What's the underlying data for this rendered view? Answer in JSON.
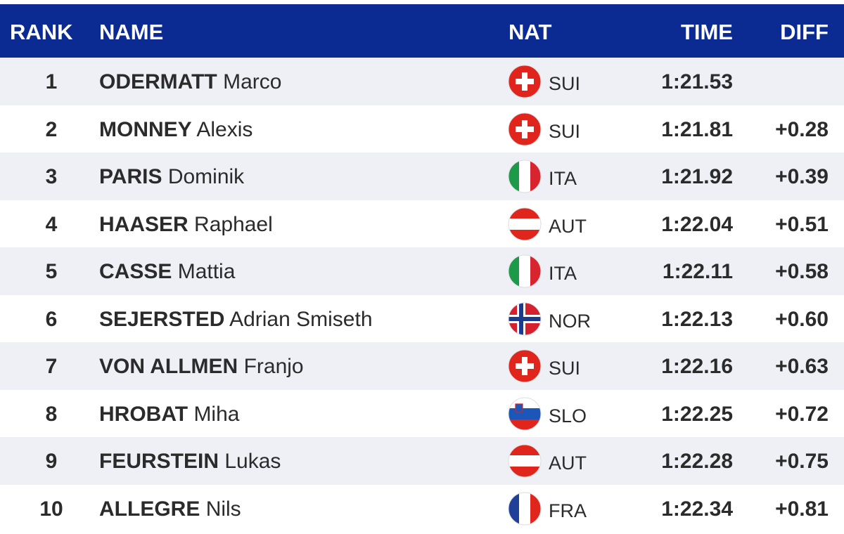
{
  "header": {
    "rank": "RANK",
    "name": "NAME",
    "nat": "NAT",
    "time": "TIME",
    "diff": "DIFF"
  },
  "rows": [
    {
      "rank": 1,
      "surname": "ODERMATT",
      "first_name": "Marco",
      "nat": "SUI",
      "time": "1:21.53"
    },
    {
      "rank": 2,
      "surname": "MONNEY",
      "first_name": "Alexis",
      "nat": "SUI",
      "time": "1:21.81",
      "diff": "+0.28"
    },
    {
      "rank": 3,
      "surname": "PARIS",
      "first_name": "Dominik",
      "nat": "ITA",
      "time": "1:21.92",
      "diff": "+0.39"
    },
    {
      "rank": 4,
      "surname": "HAASER",
      "first_name": "Raphael",
      "nat": "AUT",
      "time": "1:22.04",
      "diff": "+0.51"
    },
    {
      "rank": 5,
      "surname": "CASSE",
      "first_name": "Mattia",
      "nat": "ITA",
      "time": "1:22.11",
      "diff": "+0.58"
    },
    {
      "rank": 6,
      "surname": "SEJERSTED",
      "first_name": "Adrian Smiseth",
      "nat": "NOR",
      "time": "1:22.13",
      "diff": "+0.60"
    },
    {
      "rank": 7,
      "surname": "VON ALLMEN",
      "first_name": "Franjo",
      "nat": "SUI",
      "time": "1:22.16",
      "diff": "+0.63"
    },
    {
      "rank": 8,
      "surname": "HROBAT",
      "first_name": "Miha",
      "nat": "SLO",
      "time": "1:22.25",
      "diff": "+0.72"
    },
    {
      "rank": 9,
      "surname": "FEURSTEIN",
      "first_name": "Lukas",
      "nat": "AUT",
      "time": "1:22.28",
      "diff": "+0.75"
    },
    {
      "rank": 10,
      "surname": "ALLEGRE",
      "first_name": "Nils",
      "nat": "FRA",
      "time": "1:22.34",
      "diff": "+0.81"
    }
  ]
}
